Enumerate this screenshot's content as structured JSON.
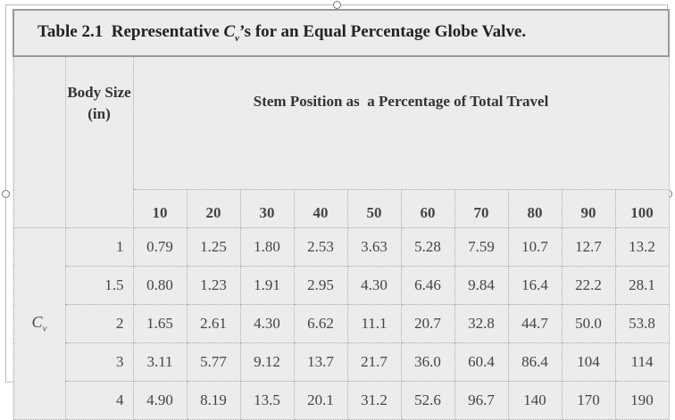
{
  "title": {
    "label": "Table 2.1",
    "text_before": "Representative ",
    "symbol": "C",
    "subscript": "v",
    "text_after": "’s for an Equal Percentage Globe Valve."
  },
  "table": {
    "body_size_header": "Body Size",
    "body_size_unit": "(in)",
    "stem_header": "Stem Position as  a Percentage of Total Travel",
    "columns": [
      "10",
      "20",
      "30",
      "40",
      "50",
      "60",
      "70",
      "80",
      "90",
      "100"
    ],
    "row_label": {
      "symbol": "C",
      "subscript": "v"
    },
    "rows": [
      {
        "size": "1",
        "values": [
          "0.79",
          "1.25",
          "1.80",
          "2.53",
          "3.63",
          "5.28",
          "7.59",
          "10.7",
          "12.7",
          "13.2"
        ]
      },
      {
        "size": "1.5",
        "values": [
          "0.80",
          "1.23",
          "1.91",
          "2.95",
          "4.30",
          "6.46",
          "9.84",
          "16.4",
          "22.2",
          "28.1"
        ]
      },
      {
        "size": "2",
        "values": [
          "1.65",
          "2.61",
          "4.30",
          "6.62",
          "11.1",
          "20.7",
          "32.8",
          "44.7",
          "50.0",
          "53.8"
        ]
      },
      {
        "size": "3",
        "values": [
          "3.11",
          "5.77",
          "9.12",
          "13.7",
          "21.7",
          "36.0",
          "60.4",
          "86.4",
          "104",
          "114"
        ]
      },
      {
        "size": "4",
        "values": [
          "4.90",
          "8.19",
          "13.5",
          "20.1",
          "31.2",
          "52.6",
          "96.7",
          "140",
          "170",
          "190"
        ]
      }
    ]
  }
}
